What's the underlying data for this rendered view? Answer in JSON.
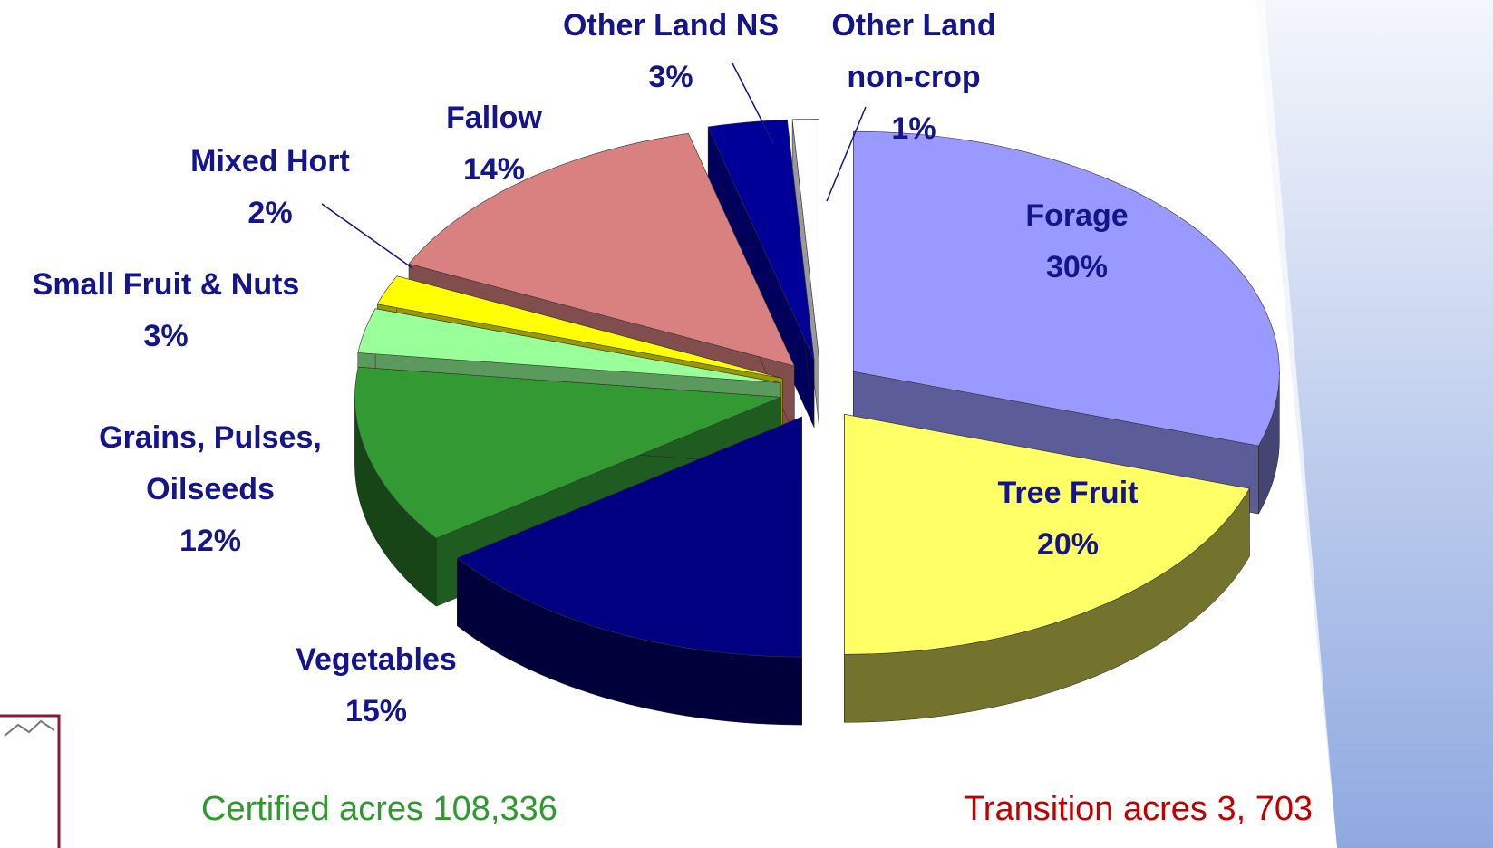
{
  "chart_data": {
    "type": "pie",
    "categories": [
      "Forage",
      "Tree Fruit",
      "Vegetables",
      "Grains, Pulses, Oilseeds",
      "Small Fruit & Nuts",
      "Mixed Hort",
      "Fallow",
      "Other Land NS",
      "Other Land non-crop"
    ],
    "values": [
      30,
      20,
      15,
      12,
      3,
      2,
      14,
      3,
      1
    ],
    "value_labels": [
      "30%",
      "20%",
      "15%",
      "12%",
      "3%",
      "2%",
      "14%",
      "3%",
      "1%"
    ],
    "colors": [
      "#9999ff",
      "#ffff66",
      "#000080",
      "#339933",
      "#99ff99",
      "#ffff00",
      "#d98080",
      "#000099",
      "#ffffff"
    ],
    "annotations": [
      "Certified acres 108,336",
      "Transition acres 3, 703"
    ]
  }
}
